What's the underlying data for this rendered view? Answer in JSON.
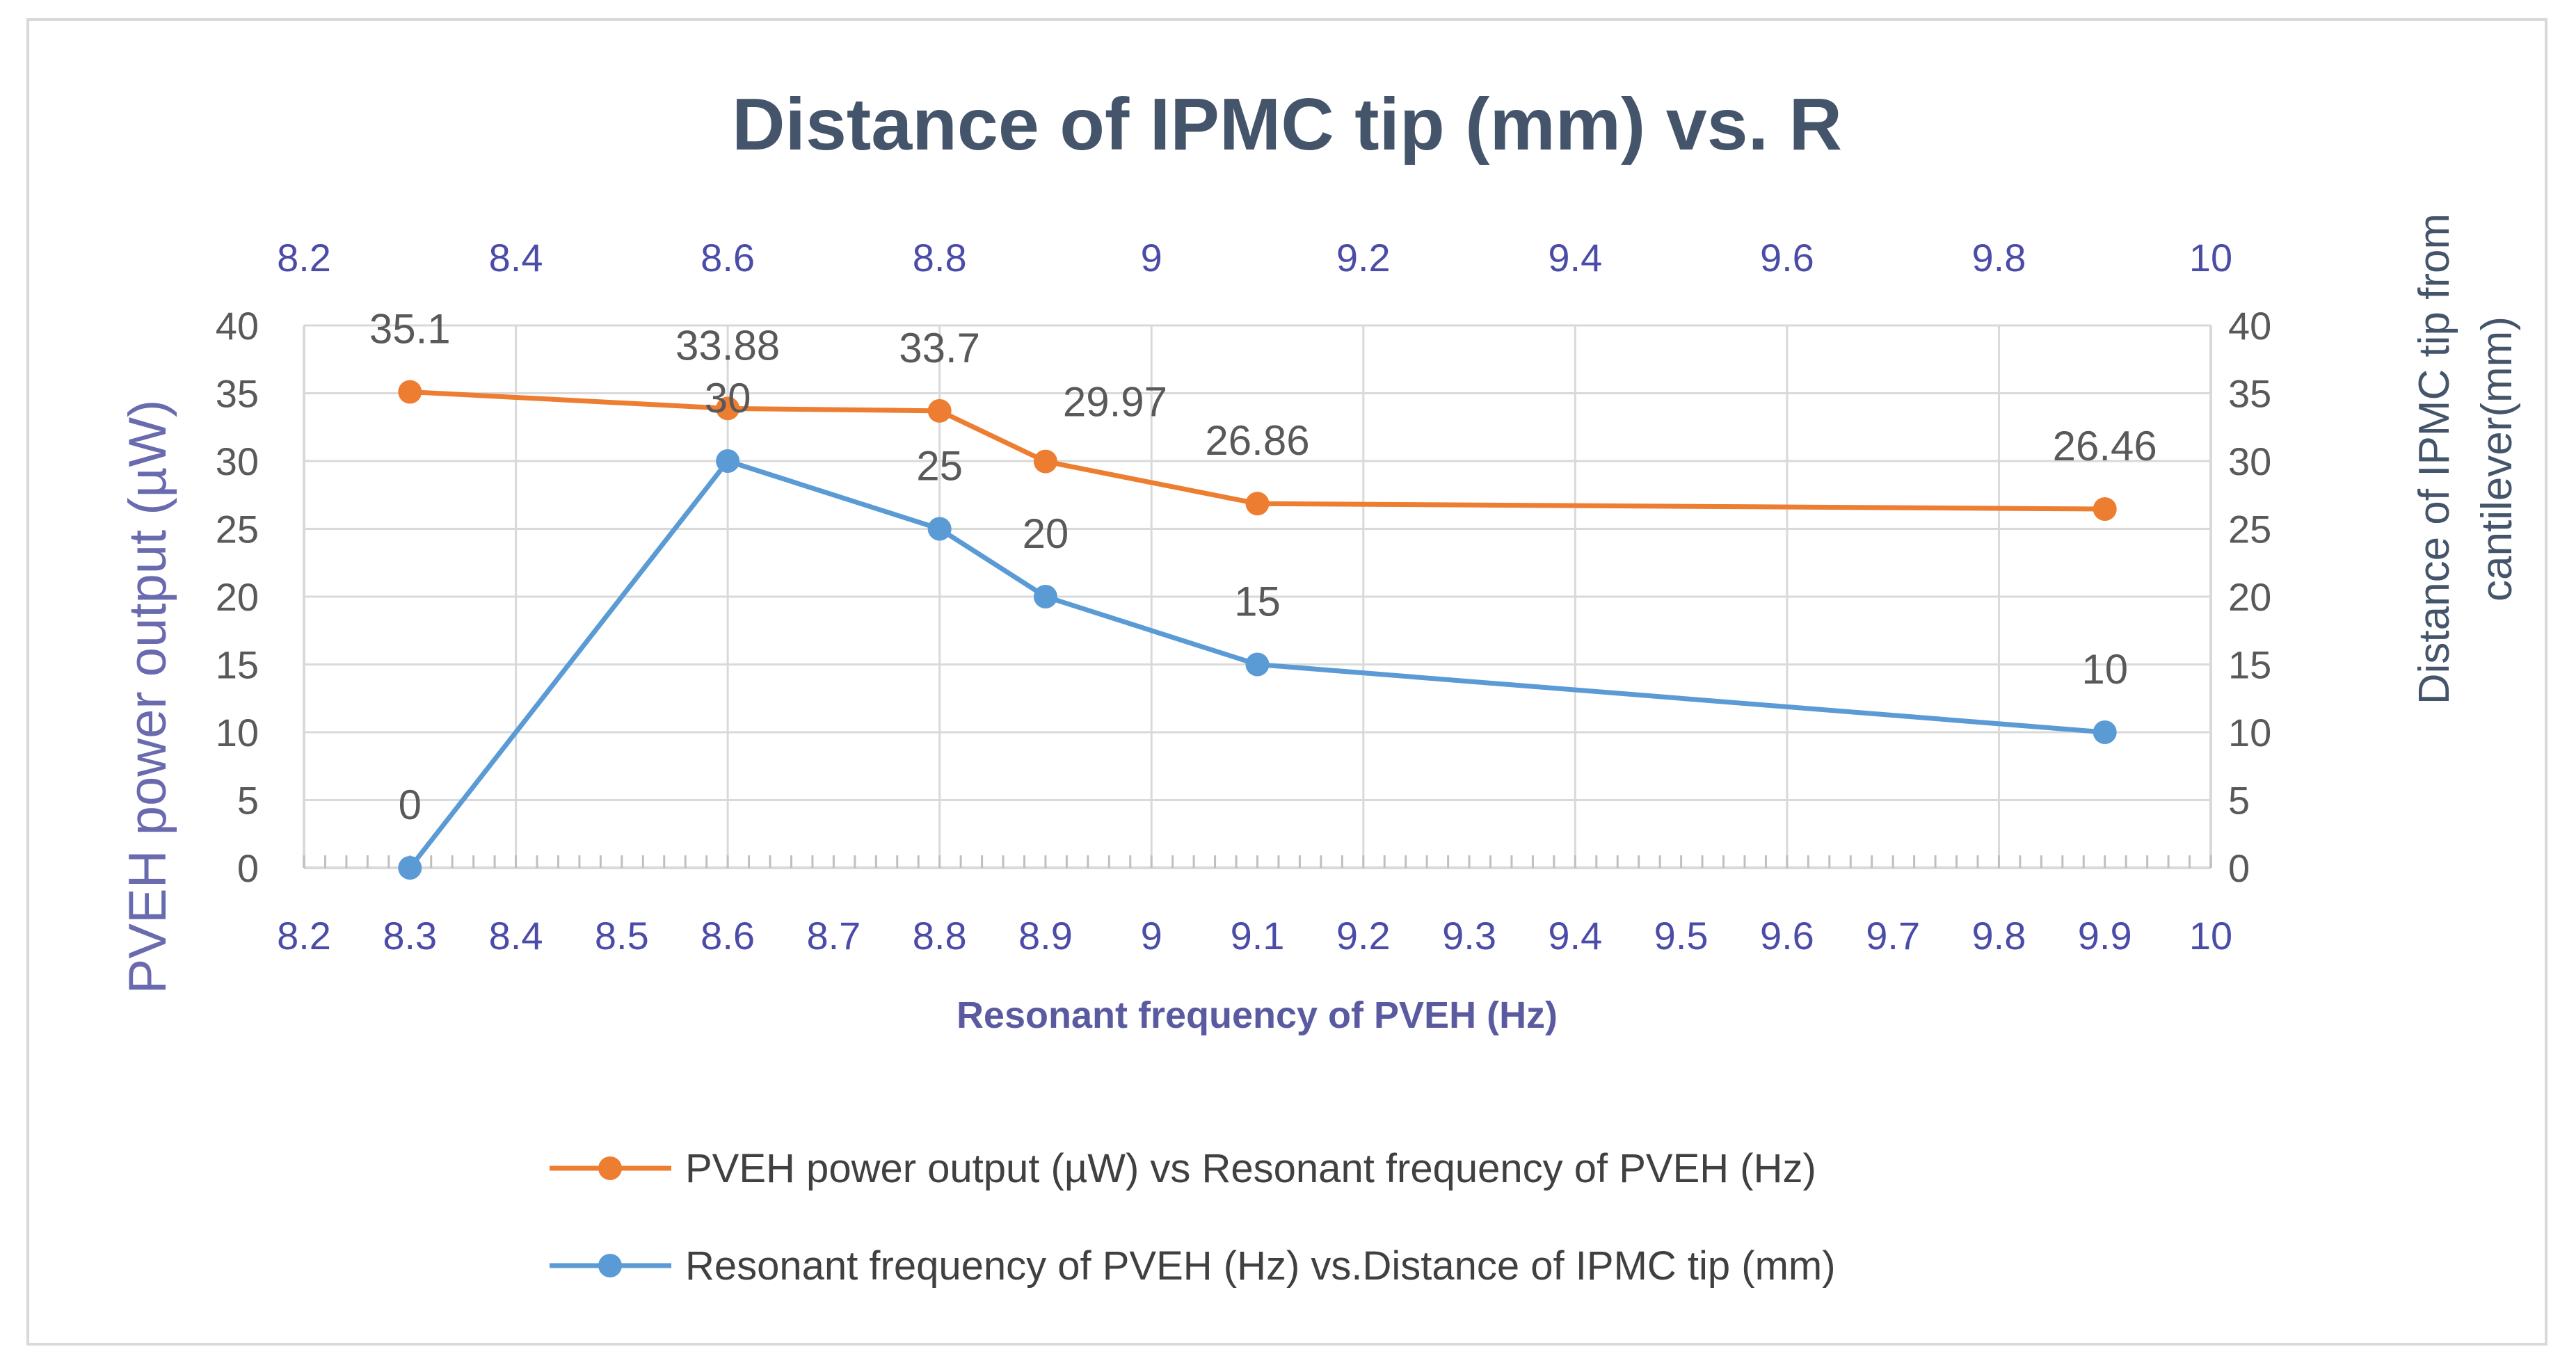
{
  "chart_data": {
    "type": "line",
    "title": "Distance of IPMC tip (mm) vs. R",
    "xlabel": "Resonant frequency of PVEH (Hz)",
    "ylabel_left": "PVEH power output (µW)",
    "ylabel_right_line1": "Distance of IPMC tip from",
    "ylabel_right_line2": "cantilever(mm)",
    "xlim": [
      8.2,
      10
    ],
    "ylim": [
      0,
      40
    ],
    "x_ticks_bottom": [
      "8.2",
      "8.3",
      "8.4",
      "8.5",
      "8.6",
      "8.7",
      "8.8",
      "8.9",
      "9",
      "9.1",
      "9.2",
      "9.3",
      "9.4",
      "9.5",
      "9.6",
      "9.7",
      "9.8",
      "9.9",
      "10"
    ],
    "x_ticks_top": [
      "8.2",
      "8.4",
      "8.6",
      "8.8",
      "9",
      "9.2",
      "9.4",
      "9.6",
      "9.8",
      "10"
    ],
    "y_ticks": [
      "0",
      "5",
      "10",
      "15",
      "20",
      "25",
      "30",
      "35",
      "40"
    ],
    "grid": true,
    "legend_position": "bottom",
    "series": [
      {
        "name": "PVEH power output (µW) vs Resonant frequency of PVEH (Hz)",
        "color": "#ED7D31",
        "x": [
          8.3,
          8.6,
          8.8,
          8.9,
          9.1,
          9.9
        ],
        "values": [
          35.1,
          33.88,
          33.7,
          29.97,
          26.86,
          26.46
        ],
        "labels": [
          "35.1",
          "33.88",
          "33.7",
          "29.97",
          "26.86",
          "26.46"
        ]
      },
      {
        "name": "Resonant frequency of PVEH (Hz) vs.Distance of IPMC tip (mm)",
        "color": "#5B9BD5",
        "x": [
          8.3,
          8.6,
          8.8,
          8.9,
          9.1,
          9.9
        ],
        "values": [
          0,
          30,
          25,
          20,
          15,
          10
        ],
        "labels": [
          "0",
          "30",
          "25",
          "20",
          "15",
          "10"
        ]
      }
    ]
  }
}
